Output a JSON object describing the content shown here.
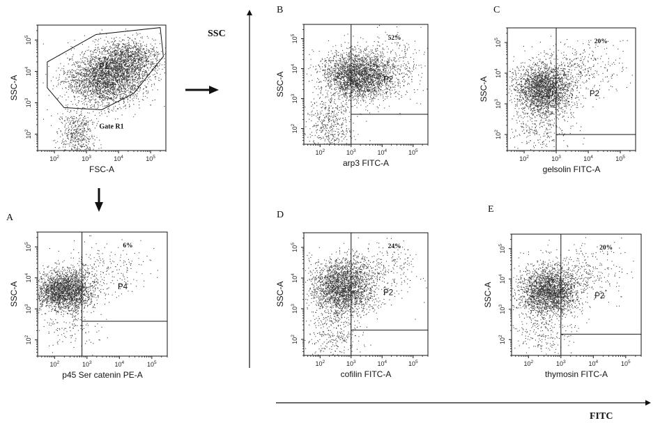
{
  "figure": {
    "ssc_arrow_label": "SSC",
    "fitc_arrow_label": "FITC"
  },
  "chart_data": [
    {
      "type": "scatter",
      "panel_id": "gate",
      "letter": "",
      "xlabel": "FSC-A",
      "ylabel": "SSC-A",
      "xscale": "log",
      "yscale": "log",
      "xlim": [
        30,
        300000
      ],
      "ylim": [
        30,
        300000
      ],
      "xticks": [
        "10^2",
        "10^3",
        "10^4",
        "10^5"
      ],
      "yticks": [
        "10^2",
        "10^3",
        "10^4",
        "10^5"
      ],
      "gate_name": "P1",
      "gate_note": "Gate R1",
      "percent": "",
      "gate_polygon": [
        [
          60,
          20000
        ],
        [
          2000,
          150000
        ],
        [
          200000,
          250000
        ],
        [
          250000,
          30000
        ],
        [
          30000,
          2000
        ],
        [
          3000,
          600
        ],
        [
          200,
          700
        ],
        [
          60,
          3000
        ]
      ],
      "clusters": [
        {
          "center": [
            4000,
            6000
          ],
          "spread": [
            0.62,
            0.42
          ],
          "count": 2600
        },
        {
          "center": [
            20000,
            25000
          ],
          "spread": [
            0.5,
            0.32
          ],
          "count": 1200
        },
        {
          "center": [
            500,
            100
          ],
          "spread": [
            0.28,
            0.42
          ],
          "count": 500
        }
      ]
    },
    {
      "type": "scatter",
      "panel_id": "A",
      "letter": "A",
      "xlabel": "p45 Ser catenin PE-A",
      "ylabel": "SSC-A",
      "xscale": "log",
      "yscale": "log",
      "xlim": [
        30,
        300000
      ],
      "ylim": [
        30,
        300000
      ],
      "xticks": [
        "10^2",
        "10^3",
        "10^4",
        "10^5"
      ],
      "yticks": [
        "10^2",
        "10^3",
        "10^4",
        "10^5"
      ],
      "gate_name": "P4",
      "percent": "6%",
      "quadrant": {
        "x": 700,
        "y": 400
      },
      "clusters": [
        {
          "center": [
            200,
            4000
          ],
          "spread": [
            0.45,
            0.32
          ],
          "count": 2400
        },
        {
          "center": [
            3000,
            20000
          ],
          "spread": [
            0.7,
            0.4
          ],
          "count": 220
        },
        {
          "center": [
            300,
            400
          ],
          "spread": [
            0.5,
            0.5
          ],
          "count": 160
        }
      ]
    },
    {
      "type": "scatter",
      "panel_id": "B",
      "letter": "B",
      "xlabel": "arp3 FITC-A",
      "ylabel": "SSC-A",
      "xscale": "log",
      "yscale": "log",
      "xlim": [
        30,
        300000
      ],
      "ylim": [
        30,
        300000
      ],
      "xticks": [
        "10^2",
        "10^3",
        "10^4",
        "10^5"
      ],
      "yticks": [
        "10^2",
        "10^3",
        "10^4",
        "10^5"
      ],
      "gate_name": "P2",
      "percent": "52%",
      "quadrant": {
        "x": 1000,
        "y": 300
      },
      "clusters": [
        {
          "center": [
            1500,
            6000
          ],
          "spread": [
            0.55,
            0.4
          ],
          "count": 2600
        },
        {
          "center": [
            200,
            150
          ],
          "spread": [
            0.4,
            0.45
          ],
          "count": 450
        },
        {
          "center": [
            20000,
            10000
          ],
          "spread": [
            0.55,
            0.55
          ],
          "count": 350
        }
      ]
    },
    {
      "type": "scatter",
      "panel_id": "C",
      "letter": "C",
      "xlabel": "gelsolin FITC-A",
      "ylabel": "SSC-A",
      "xscale": "log",
      "yscale": "log",
      "xlim": [
        30,
        300000
      ],
      "ylim": [
        30,
        300000
      ],
      "xticks": [
        "10^2",
        "10^3",
        "10^4",
        "10^5"
      ],
      "yticks": [
        "10^2",
        "10^3",
        "10^4",
        "10^5"
      ],
      "gate_name": "P2",
      "percent": "20%",
      "quadrant": {
        "x": 1000,
        "y": 100
      },
      "clusters": [
        {
          "center": [
            400,
            3000
          ],
          "spread": [
            0.45,
            0.42
          ],
          "count": 2400
        },
        {
          "center": [
            5000,
            15000
          ],
          "spread": [
            0.75,
            0.5
          ],
          "count": 350
        },
        {
          "center": [
            300,
            150
          ],
          "spread": [
            0.5,
            0.4
          ],
          "count": 250
        }
      ]
    },
    {
      "type": "scatter",
      "panel_id": "D",
      "letter": "D",
      "xlabel": "cofilin FITC-A",
      "ylabel": "SSC-A",
      "xscale": "log",
      "yscale": "log",
      "xlim": [
        30,
        300000
      ],
      "ylim": [
        30,
        300000
      ],
      "xticks": [
        "10^2",
        "10^3",
        "10^4",
        "10^5"
      ],
      "yticks": [
        "10^2",
        "10^3",
        "10^4",
        "10^5"
      ],
      "gate_name": "P2",
      "percent": "24%",
      "quadrant": {
        "x": 1000,
        "y": 200
      },
      "clusters": [
        {
          "center": [
            500,
            5000
          ],
          "spread": [
            0.5,
            0.45
          ],
          "count": 2400
        },
        {
          "center": [
            8000,
            20000
          ],
          "spread": [
            0.7,
            0.5
          ],
          "count": 320
        },
        {
          "center": [
            300,
            150
          ],
          "spread": [
            0.45,
            0.45
          ],
          "count": 300
        }
      ]
    },
    {
      "type": "scatter",
      "panel_id": "E",
      "letter": "E",
      "xlabel": "thymosin FITC-A",
      "ylabel": "SSC-A",
      "xscale": "log",
      "yscale": "log",
      "xlim": [
        30,
        300000
      ],
      "ylim": [
        30,
        300000
      ],
      "xticks": [
        "10^2",
        "10^3",
        "10^4",
        "10^5"
      ],
      "yticks": [
        "10^2",
        "10^3",
        "10^4",
        "10^5"
      ],
      "gate_name": "P2",
      "percent": "20%",
      "quadrant": {
        "x": 1000,
        "y": 150
      },
      "clusters": [
        {
          "center": [
            400,
            4000
          ],
          "spread": [
            0.45,
            0.4
          ],
          "count": 2400
        },
        {
          "center": [
            5000,
            15000
          ],
          "spread": [
            0.7,
            0.5
          ],
          "count": 320
        },
        {
          "center": [
            300,
            200
          ],
          "spread": [
            0.45,
            0.45
          ],
          "count": 220
        }
      ]
    }
  ]
}
